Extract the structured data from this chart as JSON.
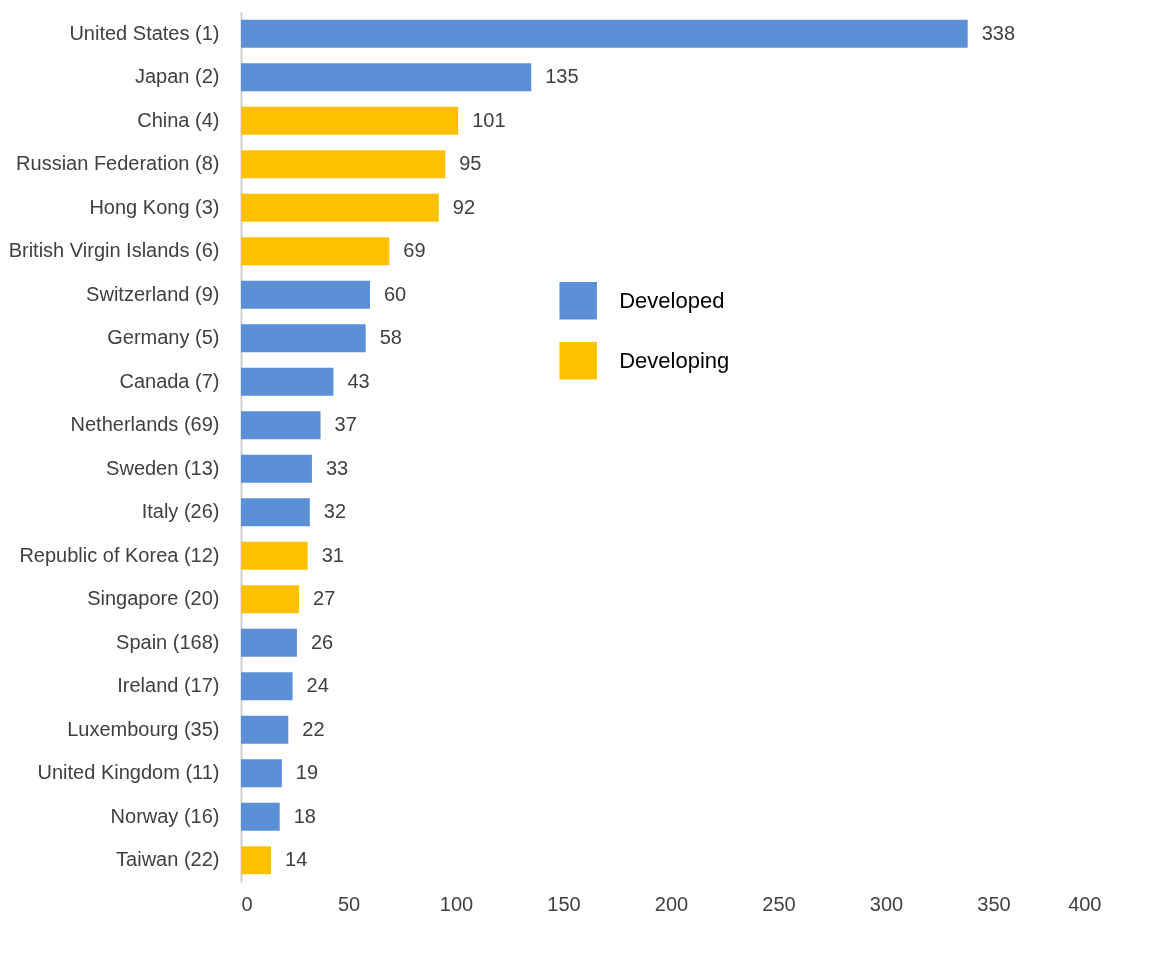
{
  "chart_data": {
    "type": "bar",
    "orientation": "horizontal",
    "categories": [
      "United States (1)",
      "Japan (2)",
      "China (4)",
      "Russian Federation (8)",
      "Hong Kong (3)",
      "British Virgin Islands (6)",
      "Switzerland (9)",
      "Germany (5)",
      "Canada (7)",
      "Netherlands (69)",
      "Sweden (13)",
      "Italy (26)",
      "Republic of Korea (12)",
      "Singapore (20)",
      "Spain (168)",
      "Ireland (17)",
      "Luxembourg (35)",
      "United Kingdom (11)",
      "Norway (16)",
      "Taiwan (22)"
    ],
    "series": [
      {
        "name": "Developed",
        "color": "#5b8fd6",
        "values": [
          338,
          135,
          null,
          null,
          null,
          null,
          60,
          58,
          43,
          37,
          33,
          32,
          null,
          null,
          26,
          24,
          22,
          19,
          18,
          null
        ]
      },
      {
        "name": "Developing",
        "color": "#ffc000",
        "values": [
          null,
          null,
          101,
          95,
          92,
          69,
          null,
          null,
          null,
          null,
          null,
          null,
          31,
          27,
          null,
          null,
          null,
          null,
          null,
          14
        ]
      }
    ],
    "xlim": [
      0,
      400
    ],
    "xticks": [
      0,
      50,
      100,
      150,
      200,
      250,
      300,
      350,
      400
    ],
    "data_labels": true,
    "grid": false,
    "legend": "right"
  }
}
